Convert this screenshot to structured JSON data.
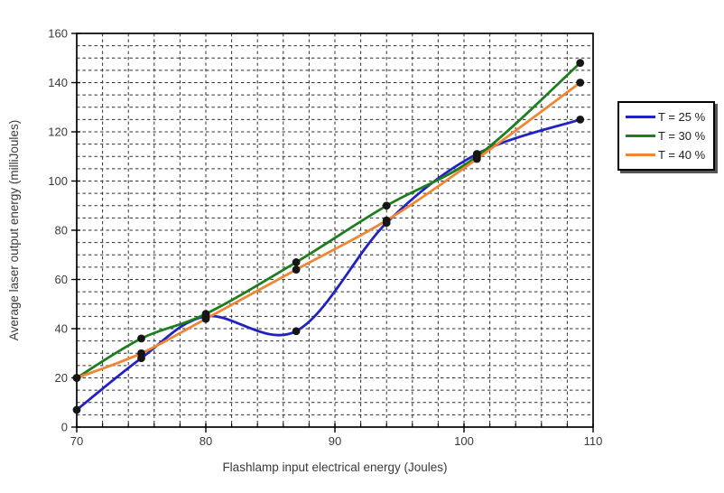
{
  "chart_data": {
    "type": "line",
    "title": "",
    "xlabel": "Flashlamp input electrical energy (Joules)",
    "ylabel": "Average laser output energy (milliJoules)",
    "x": [
      70,
      75,
      80,
      87,
      94,
      101,
      109
    ],
    "series": [
      {
        "name": "T = 25 %",
        "color": "#2222C3",
        "values": [
          7,
          28,
          45,
          39,
          83,
          111,
          125
        ]
      },
      {
        "name": "T = 30 %",
        "color": "#1E7D1E",
        "values": [
          20,
          36,
          46,
          67,
          90,
          110,
          148
        ]
      },
      {
        "name": "T = 40 %",
        "color": "#EF8633",
        "values": [
          20,
          30,
          44,
          64,
          84,
          109,
          140
        ]
      }
    ],
    "xlim": [
      70,
      110
    ],
    "ylim": [
      0,
      160
    ],
    "x_major_ticks": [
      70,
      80,
      90,
      100,
      110
    ],
    "y_major_ticks": [
      0,
      20,
      40,
      60,
      80,
      100,
      120,
      140,
      160
    ],
    "x_grid_step": 2,
    "y_grid_step": 5,
    "grid": "dashed",
    "legend_position": "right",
    "line_style": "smoothed",
    "marker": {
      "shape": "circle",
      "color": "#161616",
      "radius": 4.4
    },
    "grid_color": "#2f2f2f",
    "axis_color": "#000000"
  }
}
